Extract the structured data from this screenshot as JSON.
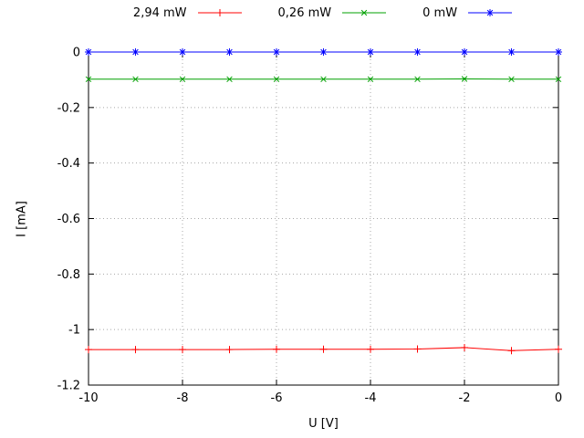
{
  "chart_data": {
    "type": "line",
    "title": "",
    "xlabel": "U [V]",
    "ylabel": "I [mA]",
    "xlim": [
      -10,
      0
    ],
    "ylim": [
      -1.2,
      0
    ],
    "grid": true,
    "legend_position": "top-center",
    "xticks": [
      {
        "v": -10,
        "label": "-10"
      },
      {
        "v": -8,
        "label": "-8"
      },
      {
        "v": -6,
        "label": "-6"
      },
      {
        "v": -4,
        "label": "-4"
      },
      {
        "v": -2,
        "label": "-2"
      },
      {
        "v": 0,
        "label": "0"
      }
    ],
    "yticks": [
      {
        "v": 0,
        "label": "0"
      },
      {
        "v": -0.2,
        "label": "-0.2"
      },
      {
        "v": -0.4,
        "label": "-0.4"
      },
      {
        "v": -0.6,
        "label": "-0.6"
      },
      {
        "v": -0.8,
        "label": "-0.8"
      },
      {
        "v": -1,
        "label": "-1"
      },
      {
        "v": -1.2,
        "label": "-1.2"
      }
    ],
    "x": [
      -10,
      -9,
      -8,
      -7,
      -6,
      -5,
      -4,
      -3,
      -2,
      -1,
      0
    ],
    "series": [
      {
        "name": "2,94 mW",
        "color": "#ff0000",
        "marker": "plus",
        "values": [
          -1.072,
          -1.072,
          -1.072,
          -1.072,
          -1.071,
          -1.071,
          -1.071,
          -1.07,
          -1.065,
          -1.076,
          -1.071
        ]
      },
      {
        "name": "0,26 mW",
        "color": "#00a000",
        "marker": "x",
        "values": [
          -0.098,
          -0.098,
          -0.098,
          -0.098,
          -0.098,
          -0.098,
          -0.098,
          -0.098,
          -0.097,
          -0.098,
          -0.098
        ]
      },
      {
        "name": "0 mW",
        "color": "#0000ff",
        "marker": "asterisk",
        "values": [
          0,
          0,
          0,
          0,
          0,
          0,
          0,
          0,
          0,
          0,
          0
        ]
      }
    ]
  }
}
